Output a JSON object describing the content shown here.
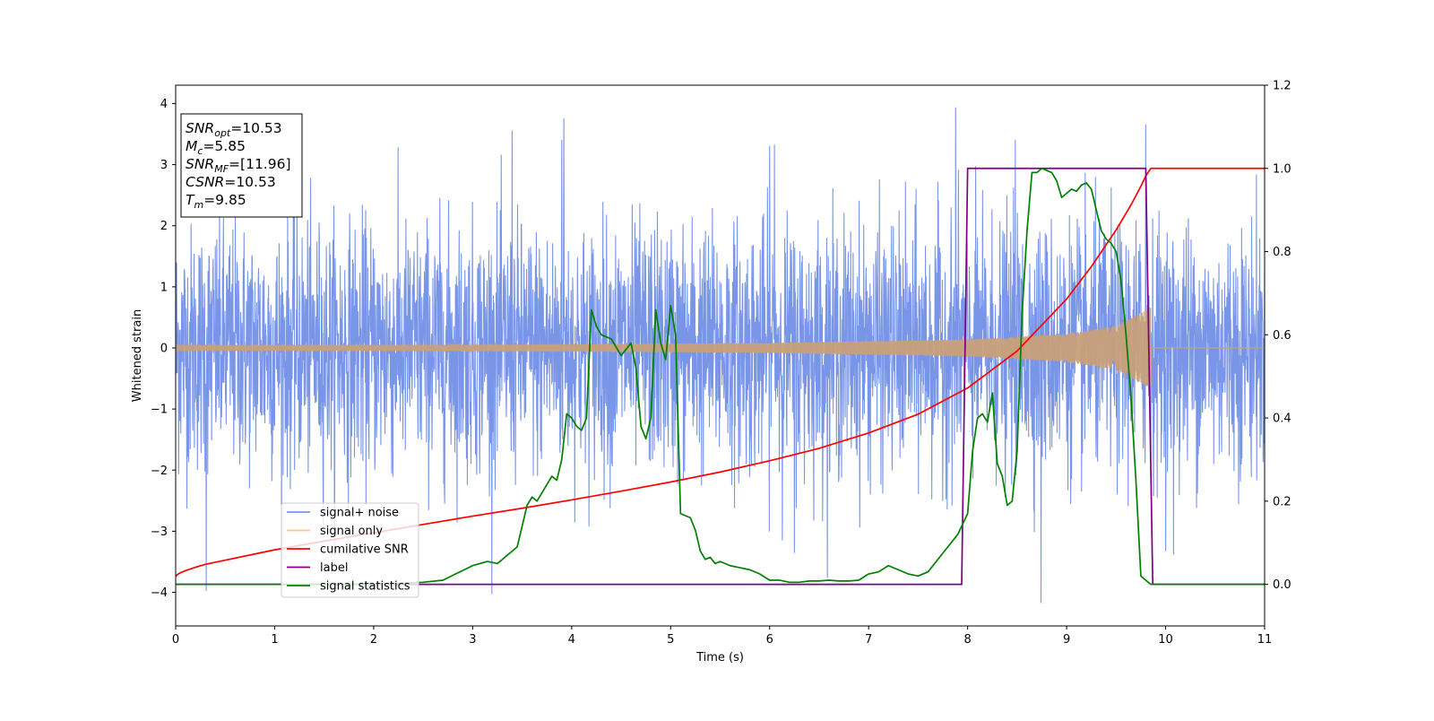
{
  "chart_data": {
    "type": "line",
    "xlabel": "Time (s)",
    "ylabel_left": "Whitened strain",
    "ylabel_right": "",
    "xlim": [
      0,
      11
    ],
    "ylim_left": [
      -4.55,
      4.3
    ],
    "ylim_right": [
      -0.1,
      1.2
    ],
    "xticks": [
      "0",
      "1",
      "2",
      "3",
      "4",
      "5",
      "6",
      "7",
      "8",
      "9",
      "10",
      "11"
    ],
    "yticks_left": [
      "−4",
      "−3",
      "−2",
      "−1",
      "0",
      "1",
      "2",
      "3",
      "4"
    ],
    "yticks_right": [
      "0.0",
      "0.2",
      "0.4",
      "0.6",
      "0.8",
      "1.0",
      "1.2"
    ],
    "grid": false,
    "legend_position": "lower-left",
    "info_box": {
      "position": "top-left",
      "lines": [
        {
          "base": "SNR",
          "sub": "opt",
          "value": "=10.53"
        },
        {
          "base": "M",
          "sub": "c",
          "value": "=5.85"
        },
        {
          "base": "SNR",
          "sub": "MF",
          "value": "=[11.96]"
        },
        {
          "base": "CSNR",
          "sub": "",
          "value": "=10.53"
        },
        {
          "base": "T",
          "sub": "m",
          "value": "=9.85"
        }
      ]
    },
    "series": [
      {
        "name": "signal+ noise",
        "axis": "left",
        "color": "#7895e8",
        "kind": "noise",
        "noise_sigma": 1.0,
        "max_abs": 4.2,
        "t_range": [
          0,
          11
        ],
        "spikes": [
          {
            "x": 0.31,
            "y": -3.97
          },
          {
            "x": 3.4,
            "y": 3.55
          },
          {
            "x": 3.9,
            "y": 3.4
          },
          {
            "x": 3.92,
            "y": 3.75
          },
          {
            "x": 6.0,
            "y": 3.3
          },
          {
            "x": 6.05,
            "y": 3.32
          },
          {
            "x": 6.25,
            "y": -3.35
          },
          {
            "x": 7.88,
            "y": 3.93
          },
          {
            "x": 8.48,
            "y": 3.4
          },
          {
            "x": 8.74,
            "y": -4.17
          },
          {
            "x": 9.8,
            "y": 3.65
          },
          {
            "x": 10.08,
            "y": -3.38
          }
        ]
      },
      {
        "name": "signal only",
        "axis": "left",
        "color": "#c8a07a",
        "kind": "chirp",
        "t_start": 0,
        "t_merge": 9.85,
        "envelope": [
          [
            0,
            0.04
          ],
          [
            2,
            0.045
          ],
          [
            4,
            0.055
          ],
          [
            6,
            0.08
          ],
          [
            8,
            0.14
          ],
          [
            9,
            0.23
          ],
          [
            9.5,
            0.36
          ],
          [
            9.75,
            0.57
          ],
          [
            9.85,
            0.67
          ]
        ]
      },
      {
        "name": "cumilative SNR",
        "axis": "right",
        "color": "#ff0000",
        "x": [
          0,
          0.02,
          0.05,
          0.1,
          0.2,
          0.3,
          0.5,
          0.8,
          1,
          1.5,
          2,
          2.5,
          3,
          3.5,
          4,
          4.5,
          5,
          5.5,
          6,
          6.5,
          7,
          7.5,
          8,
          8.5,
          9,
          9.25,
          9.5,
          9.65,
          9.75,
          9.8,
          9.85,
          11
        ],
        "y": [
          0.019,
          0.024,
          0.028,
          0.033,
          0.041,
          0.048,
          0.058,
          0.073,
          0.083,
          0.104,
          0.124,
          0.144,
          0.164,
          0.183,
          0.203,
          0.224,
          0.246,
          0.27,
          0.297,
          0.327,
          0.364,
          0.409,
          0.472,
          0.561,
          0.686,
          0.764,
          0.852,
          0.912,
          0.957,
          0.982,
          1.0,
          1.0
        ]
      },
      {
        "name": "label",
        "axis": "right",
        "color": "#800080",
        "x": [
          0,
          7.94,
          8.0,
          9.8,
          9.87,
          11
        ],
        "y": [
          0,
          0,
          1,
          1,
          0,
          0
        ]
      },
      {
        "name": "signal statistics",
        "axis": "right",
        "color": "#008000",
        "x": [
          0,
          1,
          2,
          2.5,
          2.7,
          3.0,
          3.15,
          3.25,
          3.35,
          3.45,
          3.5,
          3.55,
          3.6,
          3.65,
          3.7,
          3.75,
          3.8,
          3.85,
          3.9,
          3.95,
          4.0,
          4.05,
          4.1,
          4.15,
          4.2,
          4.25,
          4.3,
          4.4,
          4.5,
          4.6,
          4.65,
          4.7,
          4.75,
          4.8,
          4.85,
          4.9,
          4.95,
          5.0,
          5.05,
          5.1,
          5.2,
          5.25,
          5.3,
          5.35,
          5.4,
          5.45,
          5.5,
          5.6,
          5.7,
          5.8,
          5.9,
          6.0,
          6.1,
          6.2,
          6.3,
          6.4,
          6.5,
          6.6,
          6.7,
          6.8,
          6.9,
          7.0,
          7.1,
          7.2,
          7.3,
          7.4,
          7.5,
          7.6,
          7.7,
          7.8,
          7.9,
          8.0,
          8.05,
          8.1,
          8.15,
          8.2,
          8.25,
          8.3,
          8.35,
          8.4,
          8.45,
          8.5,
          8.55,
          8.6,
          8.65,
          8.7,
          8.75,
          8.8,
          8.85,
          8.9,
          8.95,
          9.0,
          9.05,
          9.1,
          9.15,
          9.2,
          9.25,
          9.3,
          9.35,
          9.4,
          9.45,
          9.5,
          9.55,
          9.6,
          9.65,
          9.7,
          9.75,
          9.8,
          9.85,
          9.9,
          10.0,
          11.0
        ],
        "y": [
          0.0,
          0.0,
          0.0,
          0.005,
          0.01,
          0.045,
          0.055,
          0.05,
          0.07,
          0.09,
          0.14,
          0.19,
          0.21,
          0.2,
          0.22,
          0.24,
          0.26,
          0.25,
          0.3,
          0.41,
          0.4,
          0.38,
          0.37,
          0.4,
          0.66,
          0.62,
          0.6,
          0.59,
          0.55,
          0.58,
          0.52,
          0.38,
          0.35,
          0.4,
          0.66,
          0.58,
          0.54,
          0.67,
          0.6,
          0.17,
          0.16,
          0.13,
          0.08,
          0.06,
          0.065,
          0.05,
          0.055,
          0.045,
          0.04,
          0.035,
          0.025,
          0.01,
          0.01,
          0.005,
          0.005,
          0.008,
          0.008,
          0.01,
          0.008,
          0.008,
          0.01,
          0.025,
          0.03,
          0.045,
          0.035,
          0.025,
          0.02,
          0.03,
          0.06,
          0.09,
          0.12,
          0.17,
          0.32,
          0.4,
          0.41,
          0.39,
          0.46,
          0.29,
          0.26,
          0.19,
          0.2,
          0.32,
          0.65,
          0.85,
          0.99,
          0.99,
          1.0,
          0.995,
          0.99,
          0.97,
          0.93,
          0.94,
          0.95,
          0.945,
          0.96,
          0.965,
          0.95,
          0.9,
          0.85,
          0.83,
          0.82,
          0.8,
          0.73,
          0.6,
          0.45,
          0.25,
          0.02,
          0.01,
          0.0,
          0.0,
          0.0,
          0.0
        ]
      }
    ]
  }
}
